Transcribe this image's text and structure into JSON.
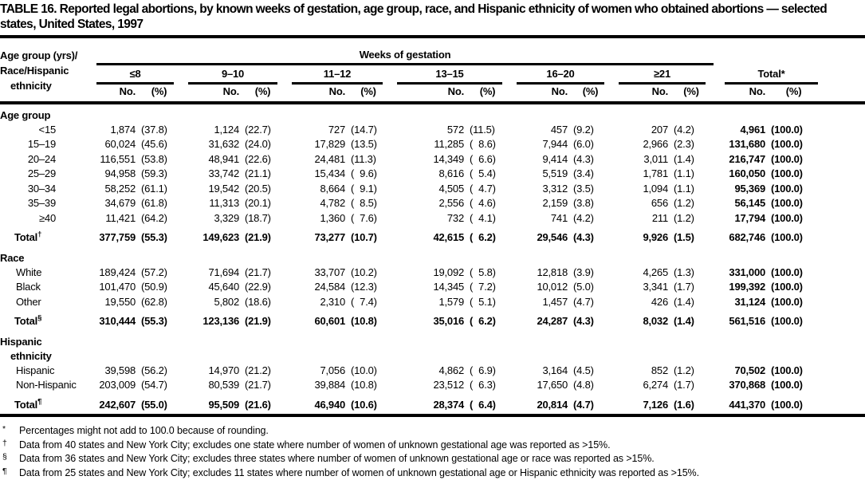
{
  "title": "TABLE 16. Reported legal abortions, by known weeks of gestation, age group, race, and Hispanic ethnicity of women who obtained abortions — selected states, United States, 1997",
  "table": {
    "stub_header_lines": [
      "Age group (yrs)/",
      "Race/Hispanic",
      "ethnicity"
    ],
    "group_header": "Weeks of gestation",
    "col_groups": [
      "≤8",
      "9–10",
      "11–12",
      "13–15",
      "16–20",
      "≥21"
    ],
    "total_group": "Total*",
    "subheaders": {
      "no": "No.",
      "pct": "(%)"
    },
    "sections": [
      {
        "heading_lines": [
          "Age group"
        ],
        "row_style": "age",
        "rows": [
          {
            "label": "<15",
            "cells": [
              "1,874",
              "(37.8)",
              "1,124",
              "(22.7)",
              "727",
              "(14.7)",
              "572",
              "(11.5)",
              "457",
              "(9.2)",
              "207",
              "(4.2)",
              "4,961",
              "(100.0)"
            ]
          },
          {
            "label": "15–19",
            "cells": [
              "60,024",
              "(45.6)",
              "31,632",
              "(24.0)",
              "17,829",
              "(13.5)",
              "11,285",
              "( 8.6)",
              "7,944",
              "(6.0)",
              "2,966",
              "(2.3)",
              "131,680",
              "(100.0)"
            ]
          },
          {
            "label": "20–24",
            "cells": [
              "116,551",
              "(53.8)",
              "48,941",
              "(22.6)",
              "24,481",
              "(11.3)",
              "14,349",
              "( 6.6)",
              "9,414",
              "(4.3)",
              "3,011",
              "(1.4)",
              "216,747",
              "(100.0)"
            ]
          },
          {
            "label": "25–29",
            "cells": [
              "94,958",
              "(59.3)",
              "33,742",
              "(21.1)",
              "15,434",
              "( 9.6)",
              "8,616",
              "( 5.4)",
              "5,519",
              "(3.4)",
              "1,781",
              "(1.1)",
              "160,050",
              "(100.0)"
            ]
          },
          {
            "label": "30–34",
            "cells": [
              "58,252",
              "(61.1)",
              "19,542",
              "(20.5)",
              "8,664",
              "( 9.1)",
              "4,505",
              "( 4.7)",
              "3,312",
              "(3.5)",
              "1,094",
              "(1.1)",
              "95,369",
              "(100.0)"
            ]
          },
          {
            "label": "35–39",
            "cells": [
              "34,679",
              "(61.8)",
              "11,313",
              "(20.1)",
              "4,782",
              "( 8.5)",
              "2,556",
              "( 4.6)",
              "2,159",
              "(3.8)",
              "656",
              "(1.2)",
              "56,145",
              "(100.0)"
            ]
          },
          {
            "label": "≥40",
            "cells": [
              "11,421",
              "(64.2)",
              "3,329",
              "(18.7)",
              "1,360",
              "( 7.6)",
              "732",
              "( 4.1)",
              "741",
              "(4.2)",
              "211",
              "(1.2)",
              "17,794",
              "(100.0)"
            ]
          }
        ],
        "total": {
          "label": "Total",
          "marker": "†",
          "cells": [
            "377,759",
            "(55.3)",
            "149,623",
            "(21.9)",
            "73,277",
            "(10.7)",
            "42,615",
            "( 6.2)",
            "29,546",
            "(4.3)",
            "9,926",
            "(1.5)",
            "682,746",
            "(100.0)"
          ]
        }
      },
      {
        "heading_lines": [
          "Race"
        ],
        "row_style": "indent",
        "rows": [
          {
            "label": "White",
            "cells": [
              "189,424",
              "(57.2)",
              "71,694",
              "(21.7)",
              "33,707",
              "(10.2)",
              "19,092",
              "( 5.8)",
              "12,818",
              "(3.9)",
              "4,265",
              "(1.3)",
              "331,000",
              "(100.0)"
            ]
          },
          {
            "label": "Black",
            "cells": [
              "101,470",
              "(50.9)",
              "45,640",
              "(22.9)",
              "24,584",
              "(12.3)",
              "14,345",
              "( 7.2)",
              "10,012",
              "(5.0)",
              "3,341",
              "(1.7)",
              "199,392",
              "(100.0)"
            ]
          },
          {
            "label": "Other",
            "cells": [
              "19,550",
              "(62.8)",
              "5,802",
              "(18.6)",
              "2,310",
              "( 7.4)",
              "1,579",
              "( 5.1)",
              "1,457",
              "(4.7)",
              "426",
              "(1.4)",
              "31,124",
              "(100.0)"
            ]
          }
        ],
        "total": {
          "label": "Total",
          "marker": "§",
          "cells": [
            "310,444",
            "(55.3)",
            "123,136",
            "(21.9)",
            "60,601",
            "(10.8)",
            "35,016",
            "( 6.2)",
            "24,287",
            "(4.3)",
            "8,032",
            "(1.4)",
            "561,516",
            "(100.0)"
          ]
        }
      },
      {
        "heading_lines": [
          "Hispanic",
          "ethnicity"
        ],
        "row_style": "indent",
        "rows": [
          {
            "label": "Hispanic",
            "cells": [
              "39,598",
              "(56.2)",
              "14,970",
              "(21.2)",
              "7,056",
              "(10.0)",
              "4,862",
              "( 6.9)",
              "3,164",
              "(4.5)",
              "852",
              "(1.2)",
              "70,502",
              "(100.0)"
            ]
          },
          {
            "label": "Non-Hispanic",
            "cells": [
              "203,009",
              "(54.7)",
              "80,539",
              "(21.7)",
              "39,884",
              "(10.8)",
              "23,512",
              "( 6.3)",
              "17,650",
              "(4.8)",
              "6,274",
              "(1.7)",
              "370,868",
              "(100.0)"
            ]
          }
        ],
        "total": {
          "label": "Total",
          "marker": "¶",
          "cells": [
            "242,607",
            "(55.0)",
            "95,509",
            "(21.6)",
            "46,940",
            "(10.6)",
            "28,374",
            "( 6.4)",
            "20,814",
            "(4.7)",
            "7,126",
            "(1.6)",
            "441,370",
            "(100.0)"
          ]
        }
      }
    ]
  },
  "footnotes": [
    {
      "marker": "*",
      "text": "Percentages might not add to 100.0 because of rounding."
    },
    {
      "marker": "†",
      "text": "Data from 40 states and New York City; excludes one state where number of women of unknown gestational age was reported as >15%."
    },
    {
      "marker": "§",
      "text": "Data from 36 states and New York City; excludes three states where number of women of unknown gestational age or race was reported as >15%."
    },
    {
      "marker": "¶",
      "text": "Data from 25 states and New York City; excludes 11 states where number of women of unknown gestational age or Hispanic ethnicity was reported as >15%."
    }
  ]
}
